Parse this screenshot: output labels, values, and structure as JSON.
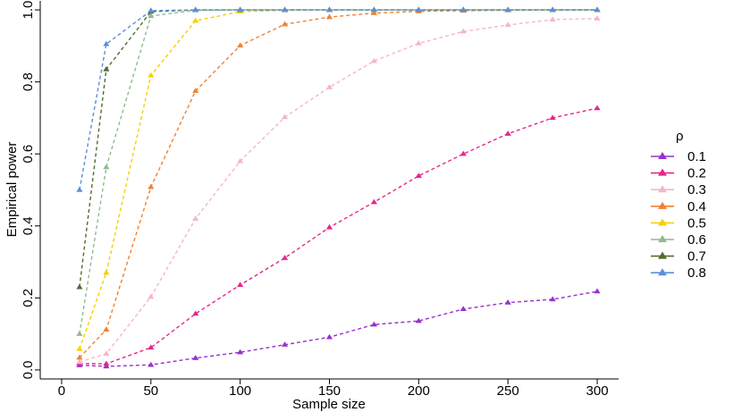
{
  "chart_data": {
    "type": "line",
    "xlabel": "Sample size",
    "ylabel": "Empirical power",
    "xlim": [
      -12,
      312
    ],
    "ylim": [
      -0.025,
      1.025
    ],
    "x_ticks": [
      0,
      50,
      100,
      150,
      200,
      250,
      300
    ],
    "y_ticks": [
      0.0,
      0.2,
      0.4,
      0.6,
      0.8,
      1.0
    ],
    "x_tick_labels": [
      "0",
      "50",
      "100",
      "150",
      "200",
      "250",
      "300"
    ],
    "y_tick_labels": [
      "0.0",
      "0.2",
      "0.4",
      "0.6",
      "0.8",
      "1.0"
    ],
    "grid": false,
    "legend": {
      "title": "ρ",
      "position": "right"
    },
    "x": [
      10,
      25,
      50,
      75,
      100,
      125,
      150,
      175,
      200,
      225,
      250,
      275,
      300
    ],
    "series": [
      {
        "name": "0.1",
        "color": "#9932CC",
        "values": [
          0.013,
          0.01,
          0.014,
          0.033,
          0.049,
          0.07,
          0.091,
          0.126,
          0.136,
          0.169,
          0.187,
          0.196,
          0.218
        ]
      },
      {
        "name": "0.2",
        "color": "#E8258E",
        "values": [
          0.018,
          0.017,
          0.062,
          0.156,
          0.236,
          0.311,
          0.396,
          0.466,
          0.539,
          0.6,
          0.656,
          0.7,
          0.727
        ]
      },
      {
        "name": "0.3",
        "color": "#F5B7C5",
        "values": [
          0.022,
          0.045,
          0.203,
          0.42,
          0.58,
          0.702,
          0.785,
          0.858,
          0.907,
          0.94,
          0.958,
          0.973,
          0.976
        ]
      },
      {
        "name": "0.4",
        "color": "#F28132",
        "values": [
          0.034,
          0.112,
          0.508,
          0.775,
          0.901,
          0.96,
          0.98,
          0.991,
          0.996,
          0.998,
          0.999,
          1.0,
          1.0
        ]
      },
      {
        "name": "0.5",
        "color": "#F7CF02",
        "values": [
          0.058,
          0.27,
          0.818,
          0.97,
          0.995,
          0.999,
          1.0,
          1.0,
          1.0,
          1.0,
          1.0,
          1.0,
          1.0
        ]
      },
      {
        "name": "0.6",
        "color": "#8FBC8F",
        "values": [
          0.1,
          0.563,
          0.983,
          0.999,
          1.0,
          1.0,
          1.0,
          1.0,
          1.0,
          1.0,
          1.0,
          1.0,
          1.0
        ]
      },
      {
        "name": "0.7",
        "color": "#556B2F",
        "values": [
          0.23,
          0.835,
          0.995,
          1.0,
          1.0,
          1.0,
          1.0,
          1.0,
          1.0,
          1.0,
          1.0,
          1.0,
          1.0
        ]
      },
      {
        "name": "0.8",
        "color": "#5B8FDB",
        "values": [
          0.5,
          0.905,
          0.998,
          1.0,
          1.0,
          1.0,
          1.0,
          1.0,
          1.0,
          1.0,
          1.0,
          1.0,
          1.0
        ]
      }
    ]
  }
}
